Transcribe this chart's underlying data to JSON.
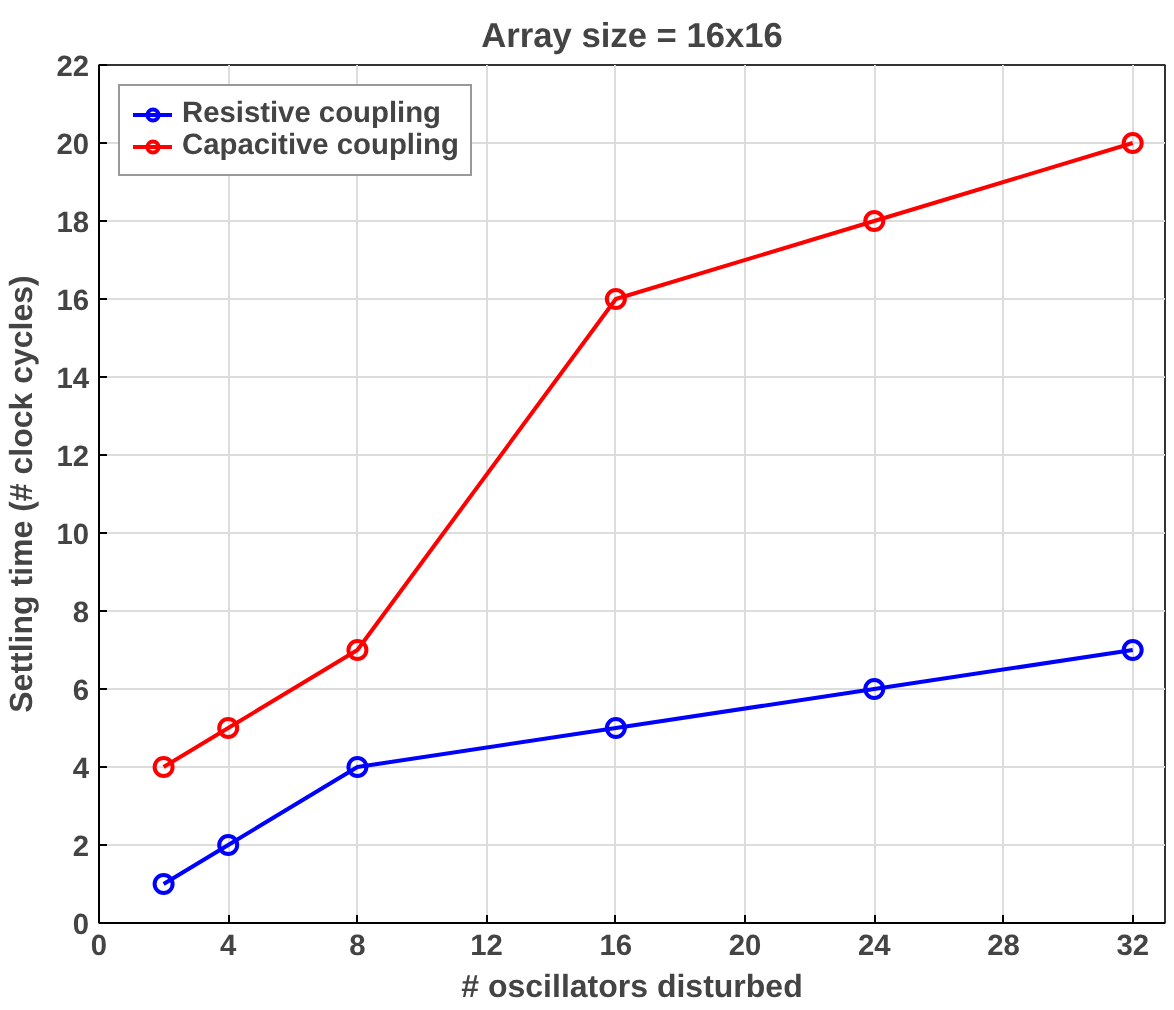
{
  "chart_data": {
    "type": "line",
    "title": "Array size = 16x16",
    "xlabel": "# oscillators disturbed",
    "ylabel": "Settling time (# clock cycles)",
    "x": [
      2,
      4,
      8,
      16,
      24,
      32
    ],
    "series": [
      {
        "name": "Resistive coupling",
        "color": "#0000ff",
        "values": [
          1,
          2,
          4,
          5,
          6,
          7
        ]
      },
      {
        "name": "Capacitive coupling",
        "color": "#ff0000",
        "values": [
          4,
          5,
          7,
          16,
          18,
          20
        ]
      }
    ],
    "xlim": [
      0,
      33
    ],
    "xticks": [
      0,
      4,
      8,
      12,
      16,
      20,
      24,
      28,
      32
    ],
    "ylim": [
      0,
      22
    ],
    "yticks": [
      0,
      2,
      4,
      6,
      8,
      10,
      12,
      14,
      16,
      18,
      20,
      22
    ],
    "grid": true,
    "legend": "top left",
    "marker": "circle",
    "line_style": "solid"
  }
}
